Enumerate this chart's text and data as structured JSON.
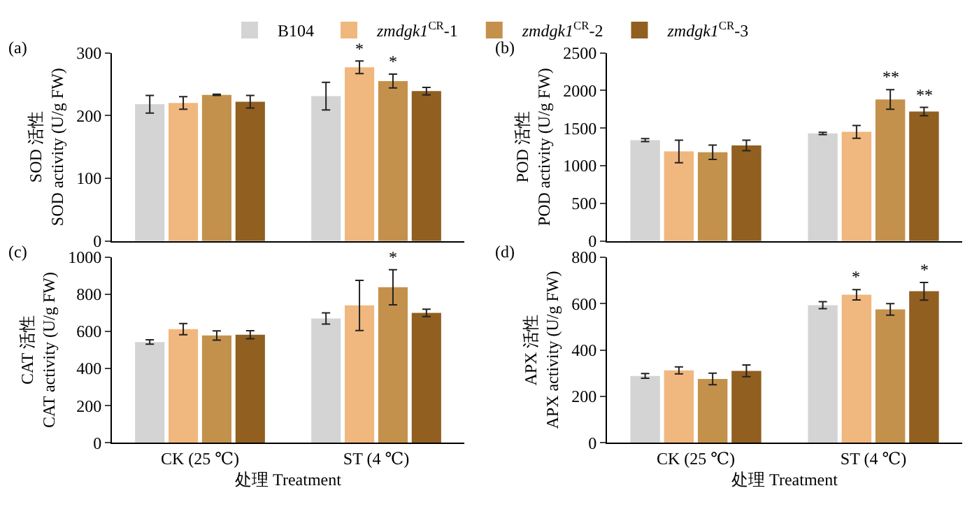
{
  "chart_data": [
    {
      "type": "bar",
      "categories": [
        null,
        null
      ],
      "ylabel": "SOD 活性\nSOD activity (U/g FW)",
      "ylim": [
        0,
        300
      ],
      "yticks": [
        0,
        100,
        200,
        300
      ],
      "tick_labels": "y",
      "legend": "top",
      "annotations": [
        "(a)"
      ],
      "series": [
        {
          "name": "B104",
          "color": "#d4d4d4",
          "values": [
            218,
            231
          ],
          "errors": [
            14,
            22
          ]
        },
        {
          "name": "zmdgk1$^{CR}$-1",
          "color": "#f0b77e",
          "values": [
            220,
            277
          ],
          "errors": [
            10,
            10
          ],
          "value_labels": [
            null,
            "*"
          ]
        },
        {
          "name": "zmdgk1$^{CR}$-2",
          "color": "#c4914c",
          "values": [
            233,
            255
          ],
          "errors": [
            1,
            11
          ],
          "value_labels": [
            null,
            "*"
          ]
        },
        {
          "name": "zmdgk1$^{CR}$-3",
          "color": "#915f20",
          "values": [
            222,
            239
          ],
          "errors": [
            10,
            6
          ]
        }
      ]
    },
    {
      "type": "bar",
      "categories": [
        null,
        null
      ],
      "ylabel": "POD 活性\nPOD activity (U/g FW)",
      "ylim": [
        0,
        2500
      ],
      "yticks": [
        0,
        500,
        1000,
        1500,
        2000,
        2500
      ],
      "tick_labels": "y",
      "annotations": [
        "(b)"
      ],
      "series": [
        {
          "color": "#d4d4d4",
          "values": [
            1340,
            1430
          ],
          "errors": [
            20,
            15
          ]
        },
        {
          "color": "#f0b77e",
          "values": [
            1190,
            1450
          ],
          "errors": [
            150,
            85
          ]
        },
        {
          "color": "#c4914c",
          "values": [
            1180,
            1880
          ],
          "errors": [
            95,
            130
          ],
          "value_labels": [
            null,
            "**"
          ]
        },
        {
          "color": "#915f20",
          "values": [
            1270,
            1720
          ],
          "errors": [
            70,
            55
          ],
          "value_labels": [
            null,
            "**"
          ]
        }
      ]
    },
    {
      "type": "bar",
      "categories": [
        "CK (25 ℃)",
        "ST (4 ℃)"
      ],
      "xlabel": "处理 Treatment",
      "ylabel": "CAT 活性\nCAT activity (U/g FW)",
      "ylim": [
        0,
        1000
      ],
      "yticks": [
        0,
        200,
        400,
        600,
        800,
        1000
      ],
      "annotations": [
        "(c)"
      ],
      "series": [
        {
          "color": "#d4d4d4",
          "values": [
            543,
            670
          ],
          "errors": [
            12,
            30
          ]
        },
        {
          "color": "#f0b77e",
          "values": [
            612,
            740
          ],
          "errors": [
            30,
            135
          ]
        },
        {
          "color": "#c4914c",
          "values": [
            578,
            838
          ],
          "errors": [
            25,
            95
          ],
          "value_labels": [
            null,
            "*"
          ]
        },
        {
          "color": "#915f20",
          "values": [
            582,
            700
          ],
          "errors": [
            22,
            20
          ]
        }
      ]
    },
    {
      "type": "bar",
      "categories": [
        "CK (25 ℃)",
        "ST (4 ℃)"
      ],
      "xlabel": "处理 Treatment",
      "ylabel": "APX 活性\nAPX activity (U/g FW)",
      "ylim": [
        0,
        800
      ],
      "yticks": [
        0,
        200,
        400,
        600,
        800
      ],
      "annotations": [
        "(d)"
      ],
      "series": [
        {
          "color": "#d4d4d4",
          "values": [
            288,
            593
          ],
          "errors": [
            10,
            15
          ]
        },
        {
          "color": "#f0b77e",
          "values": [
            312,
            638
          ],
          "errors": [
            15,
            22
          ],
          "value_labels": [
            null,
            "*"
          ]
        },
        {
          "color": "#c4914c",
          "values": [
            275,
            575
          ],
          "errors": [
            25,
            25
          ]
        },
        {
          "color": "#915f20",
          "values": [
            310,
            653
          ],
          "errors": [
            25,
            38
          ],
          "value_labels": [
            null,
            "*"
          ]
        }
      ]
    }
  ]
}
